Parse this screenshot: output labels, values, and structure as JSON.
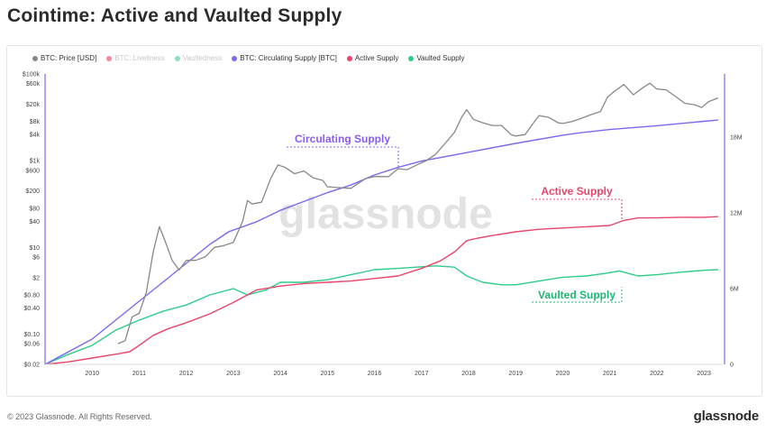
{
  "header": {
    "title": "Cointime: Active and Vaulted Supply"
  },
  "footer": {
    "copyright": "© 2023 Glassnode. All Rights Reserved.",
    "brand": "glassnode"
  },
  "watermark": "glassnode",
  "legend": [
    {
      "label": "BTC: Price [USD]",
      "color": "#888888",
      "muted": false
    },
    {
      "label": "BTC: Liveliness",
      "color": "#f28aa0",
      "muted": true
    },
    {
      "label": "Vaultedness",
      "color": "#8ce0bd",
      "muted": true
    },
    {
      "label": "BTC: Circulating Supply [BTC]",
      "color": "#7b68ee",
      "muted": false
    },
    {
      "label": "Active Supply",
      "color": "#e8456a",
      "muted": false
    },
    {
      "label": "Vaulted Supply",
      "color": "#2ecc8a",
      "muted": false
    }
  ],
  "chart_data": {
    "type": "line",
    "x_axis": {
      "ticks": [
        "2010",
        "2011",
        "2012",
        "2013",
        "2014",
        "2015",
        "2016",
        "2017",
        "2018",
        "2019",
        "2020",
        "2021",
        "2022",
        "2023"
      ],
      "range": [
        2009.0,
        2023.4
      ]
    },
    "left_axis": {
      "scale": "log",
      "ticks": [
        "$100k",
        "$60k",
        "$20k",
        "$8k",
        "$4k",
        "$1k",
        "$600",
        "$200",
        "$80",
        "$40",
        "$10",
        "$6",
        "$2",
        "$0.80",
        "$0.40",
        "$0.10",
        "$0.06",
        "$0.02"
      ],
      "range": [
        0.02,
        100000
      ]
    },
    "right_axis": {
      "ticks": [
        "18M",
        "12M",
        "6M",
        "0"
      ],
      "range": [
        0,
        23000000
      ]
    },
    "annotations": [
      {
        "label": "Circulating Supply",
        "color": "#8a5cf0"
      },
      {
        "label": "Active Supply",
        "color": "#e8456a"
      },
      {
        "label": "Vaulted Supply",
        "color": "#1fb573"
      }
    ],
    "series": [
      {
        "name": "BTC: Price [USD]",
        "axis": "left",
        "color": "#888888",
        "x": [
          2010.55,
          2010.7,
          2010.85,
          2011.0,
          2011.15,
          2011.3,
          2011.43,
          2011.55,
          2011.7,
          2011.85,
          2012.0,
          2012.2,
          2012.4,
          2012.6,
          2012.8,
          2013.0,
          2013.2,
          2013.3,
          2013.4,
          2013.6,
          2013.8,
          2013.95,
          2014.1,
          2014.3,
          2014.5,
          2014.7,
          2014.9,
          2015.0,
          2015.2,
          2015.5,
          2015.8,
          2016.0,
          2016.3,
          2016.5,
          2016.7,
          2016.9,
          2017.1,
          2017.3,
          2017.5,
          2017.7,
          2017.85,
          2017.96,
          2018.1,
          2018.3,
          2018.5,
          2018.7,
          2018.9,
          2019.0,
          2019.2,
          2019.4,
          2019.5,
          2019.7,
          2019.9,
          2020.0,
          2020.2,
          2020.4,
          2020.6,
          2020.8,
          2020.95,
          2021.1,
          2021.3,
          2021.5,
          2021.7,
          2021.85,
          2022.0,
          2022.2,
          2022.4,
          2022.6,
          2022.8,
          2022.95,
          2023.1,
          2023.3
        ],
        "values": [
          0.06,
          0.07,
          0.25,
          0.3,
          0.9,
          8,
          30,
          14,
          5,
          3,
          5,
          5,
          6,
          10,
          11,
          13,
          40,
          120,
          100,
          110,
          400,
          800,
          700,
          500,
          580,
          400,
          350,
          250,
          240,
          230,
          380,
          430,
          430,
          650,
          620,
          800,
          1000,
          1400,
          2500,
          4500,
          10000,
          15000,
          9000,
          7500,
          6500,
          6500,
          4000,
          3700,
          4000,
          8000,
          11000,
          10000,
          7500,
          7200,
          8000,
          9500,
          11500,
          13500,
          29000,
          40000,
          57000,
          33000,
          48000,
          61000,
          45000,
          43000,
          30000,
          21000,
          19500,
          16800,
          23000,
          28000
        ]
      },
      {
        "name": "BTC: Circulating Supply [BTC]",
        "axis": "right",
        "color": "#7b68ee",
        "x": [
          2009.0,
          2009.5,
          2010.0,
          2010.5,
          2011.0,
          2011.5,
          2012.0,
          2012.5,
          2012.9,
          2013.5,
          2014.0,
          2014.5,
          2015.0,
          2015.5,
          2016.0,
          2016.5,
          2017.0,
          2018.0,
          2019.0,
          2020.0,
          2020.4,
          2021.0,
          2022.0,
          2023.0,
          2023.3
        ],
        "values": [
          0,
          1000000,
          2000000,
          3500000,
          5000000,
          6500000,
          8000000,
          9500000,
          10500000,
          11300000,
          12200000,
          12900000,
          13600000,
          14200000,
          15000000,
          15600000,
          16100000,
          16800000,
          17500000,
          18150000,
          18350000,
          18600000,
          18900000,
          19250000,
          19350000
        ]
      },
      {
        "name": "Active Supply",
        "axis": "right",
        "color": "#e8456a",
        "x": [
          2009.0,
          2009.5,
          2010.0,
          2010.5,
          2010.8,
          2011.0,
          2011.3,
          2011.6,
          2012.0,
          2012.5,
          2013.0,
          2013.5,
          2014.0,
          2014.5,
          2015.0,
          2015.5,
          2016.0,
          2016.5,
          2017.0,
          2017.4,
          2017.7,
          2017.96,
          2018.2,
          2018.5,
          2019.0,
          2019.5,
          2020.0,
          2020.5,
          2021.0,
          2021.3,
          2021.6,
          2022.0,
          2022.5,
          2023.0,
          2023.3
        ],
        "values": [
          0,
          200000,
          500000,
          800000,
          1000000,
          1500000,
          2300000,
          2800000,
          3300000,
          4000000,
          4900000,
          5900000,
          6200000,
          6400000,
          6500000,
          6600000,
          6800000,
          7000000,
          7600000,
          8200000,
          8900000,
          9800000,
          10000000,
          10200000,
          10500000,
          10700000,
          10800000,
          10900000,
          11000000,
          11400000,
          11600000,
          11600000,
          11650000,
          11650000,
          11700000
        ]
      },
      {
        "name": "Vaulted Supply",
        "axis": "right",
        "color": "#2ecc8a",
        "x": [
          2009.0,
          2009.5,
          2010.0,
          2010.5,
          2011.0,
          2011.5,
          2012.0,
          2012.5,
          2013.0,
          2013.3,
          2013.7,
          2014.0,
          2014.5,
          2015.0,
          2015.5,
          2016.0,
          2016.5,
          2016.9,
          2017.3,
          2017.7,
          2017.96,
          2018.3,
          2018.7,
          2019.0,
          2019.5,
          2020.0,
          2020.5,
          2020.9,
          2021.2,
          2021.6,
          2022.0,
          2022.5,
          2023.0,
          2023.3
        ],
        "values": [
          0,
          800000,
          1500000,
          2700000,
          3500000,
          4200000,
          4700000,
          5500000,
          6000000,
          5500000,
          5900000,
          6500000,
          6500000,
          6700000,
          7100000,
          7500000,
          7600000,
          7700000,
          7800000,
          7700000,
          7000000,
          6500000,
          6300000,
          6300000,
          6600000,
          6900000,
          7000000,
          7200000,
          7400000,
          7000000,
          7100000,
          7300000,
          7450000,
          7500000
        ]
      }
    ]
  }
}
